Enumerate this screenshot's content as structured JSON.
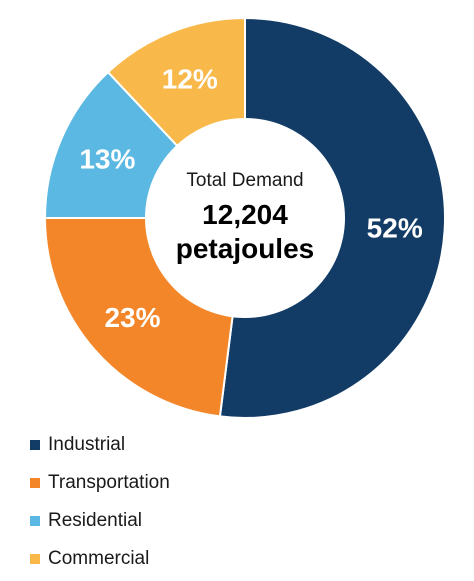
{
  "chart_data": {
    "type": "pie",
    "donut": true,
    "center_text": {
      "line1": "Total Demand",
      "line2": "12,204",
      "line3": "petajoules"
    },
    "categories": [
      "Industrial",
      "Transportation",
      "Residential",
      "Commercial"
    ],
    "values": [
      52,
      23,
      13,
      12
    ],
    "value_labels": [
      "52%",
      "23%",
      "13%",
      "12%"
    ],
    "colors": [
      "#123c66",
      "#f4862a",
      "#5bb8e2",
      "#f9b94a"
    ],
    "legend_position": "bottom-left"
  }
}
